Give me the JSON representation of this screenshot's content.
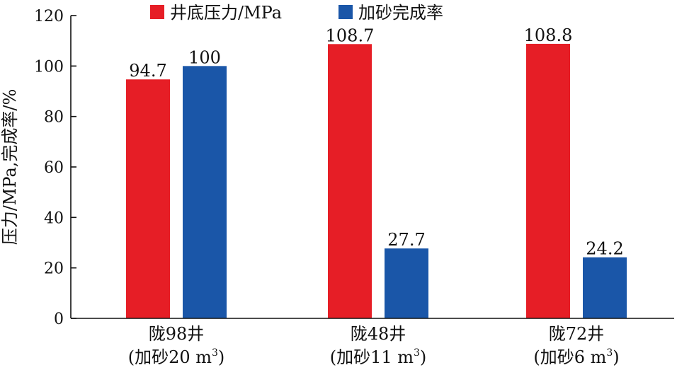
{
  "chart_data": {
    "type": "bar",
    "categories": [
      {
        "name": "陇98井",
        "sub_prefix": "(加砂20 m",
        "sup": "3",
        "sub_suffix": ")"
      },
      {
        "name": "陇48井",
        "sub_prefix": "(加砂11 m",
        "sup": "3",
        "sub_suffix": ")"
      },
      {
        "name": "陇72井",
        "sub_prefix": "(加砂6 m",
        "sup": "3",
        "sub_suffix": ")"
      }
    ],
    "series": [
      {
        "name": "井底压力/MPa",
        "color": "#e61e26",
        "values": [
          94.7,
          108.7,
          108.8
        ],
        "labels": [
          "94.7",
          "108.7",
          "108.8"
        ]
      },
      {
        "name": "加砂完成率",
        "color": "#1a56a8",
        "values": [
          100,
          27.7,
          24.2
        ],
        "labels": [
          "100",
          "27.7",
          "24.2"
        ]
      }
    ],
    "ylabel": "压力/MPa,完成率/%",
    "ylim": [
      0,
      120
    ],
    "yticks": [
      "0",
      "20",
      "40",
      "60",
      "80",
      "100",
      "120"
    ],
    "grid": false,
    "legend_position": "top-center"
  }
}
